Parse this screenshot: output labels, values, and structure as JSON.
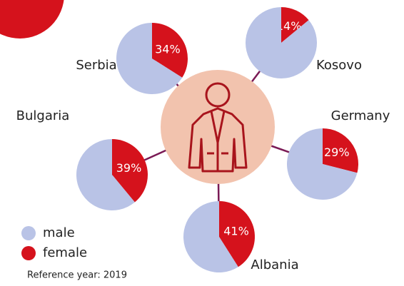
{
  "chart_data": [
    {
      "type": "pie",
      "title": "Serbia",
      "values": [
        66,
        34
      ],
      "value_labels": [
        null,
        "34%"
      ]
    },
    {
      "type": "pie",
      "title": "Kosovo",
      "values": [
        86,
        14
      ],
      "value_labels": [
        null,
        "14%"
      ]
    },
    {
      "type": "pie",
      "title": "Germany",
      "values": [
        71,
        29
      ],
      "value_labels": [
        null,
        "29%"
      ]
    },
    {
      "type": "pie",
      "title": "Bulgaria",
      "values": [
        61,
        39
      ],
      "value_labels": [
        null,
        "39%"
      ]
    },
    {
      "type": "pie",
      "title": "Albania",
      "values": [
        59,
        41
      ],
      "value_labels": [
        null,
        "41%"
      ]
    }
  ],
  "legend": {
    "labels": [
      "male",
      "female"
    ],
    "colors": [
      "#b9c3e6",
      "#d5121c"
    ]
  },
  "note": "Reference year: 2019"
}
